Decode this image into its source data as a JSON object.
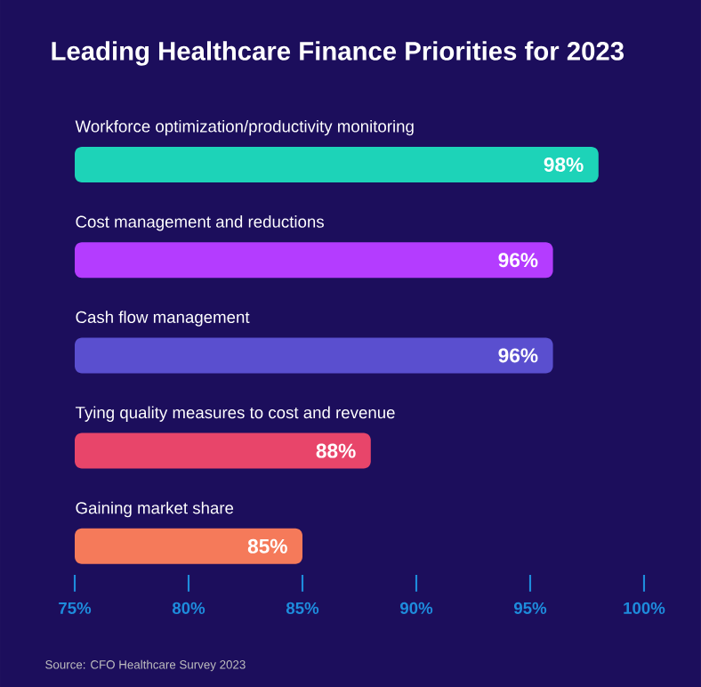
{
  "chart_data": {
    "type": "bar",
    "orientation": "horizontal",
    "title": "Leading Healthcare Finance Priorities for 2023",
    "categories": [
      "Workforce optimization/productivity monitoring",
      "Cost management and reductions",
      "Cash flow management",
      "Tying quality measures to cost and revenue",
      "Gaining market share"
    ],
    "values": [
      98,
      96,
      96,
      88,
      85
    ],
    "value_labels": [
      "98%",
      "96%",
      "96%",
      "88%",
      "85%"
    ],
    "colors": [
      "#1dd3b8",
      "#b43cff",
      "#5a4fcf",
      "#e8456a",
      "#f57a5a"
    ],
    "xlim": [
      75,
      100
    ],
    "xticks": [
      {
        "value": 75,
        "label": "75%"
      },
      {
        "value": 80,
        "label": "80%"
      },
      {
        "value": 85,
        "label": "85%"
      },
      {
        "value": 90,
        "label": "90%"
      },
      {
        "value": 95,
        "label": "95%"
      },
      {
        "value": 100,
        "label": "100%"
      }
    ],
    "annotations": [
      "Source: CFO Healthcare Survey 2023"
    ]
  }
}
